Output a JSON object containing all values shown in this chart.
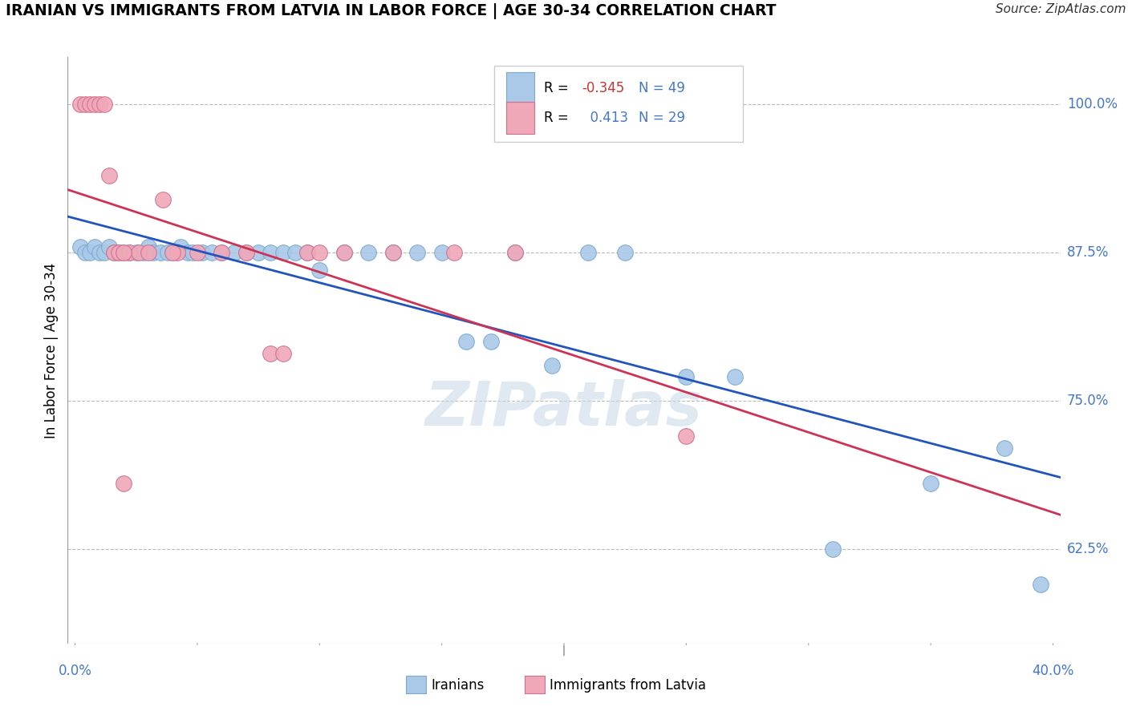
{
  "title": "IRANIAN VS IMMIGRANTS FROM LATVIA IN LABOR FORCE | AGE 30-34 CORRELATION CHART",
  "source": "Source: ZipAtlas.com",
  "ylabel": "In Labor Force | Age 30-34",
  "ytick_labels": [
    "100.0%",
    "87.5%",
    "75.0%",
    "62.5%"
  ],
  "ytick_vals": [
    1.0,
    0.875,
    0.75,
    0.625
  ],
  "xlim": [
    -0.003,
    0.403
  ],
  "ylim": [
    0.545,
    1.04
  ],
  "legend_blue_R": "-0.345",
  "legend_blue_N": "49",
  "legend_pink_R": "0.413",
  "legend_pink_N": "29",
  "blue_color": "#aac8e8",
  "blue_edge": "#7aaad0",
  "pink_color": "#f0a8b8",
  "pink_edge": "#d07090",
  "trend_blue_color": "#2255bb",
  "trend_pink_color": "#cc3355",
  "watermark": "ZIPatlas",
  "blue_x": [
    0.002,
    0.004,
    0.006,
    0.008,
    0.01,
    0.012,
    0.014,
    0.016,
    0.018,
    0.02,
    0.022,
    0.025,
    0.028,
    0.03,
    0.032,
    0.035,
    0.038,
    0.04,
    0.043,
    0.046,
    0.048,
    0.052,
    0.056,
    0.06,
    0.065,
    0.07,
    0.075,
    0.08,
    0.085,
    0.09,
    0.095,
    0.1,
    0.11,
    0.12,
    0.13,
    0.14,
    0.15,
    0.17,
    0.195,
    0.21,
    0.225,
    0.25,
    0.27,
    0.31,
    0.35,
    0.38,
    0.395,
    0.16,
    0.18
  ],
  "blue_y": [
    0.88,
    0.875,
    0.875,
    0.88,
    0.875,
    0.875,
    0.88,
    0.875,
    0.875,
    0.875,
    0.875,
    0.875,
    0.875,
    0.88,
    0.875,
    0.875,
    0.875,
    0.875,
    0.88,
    0.875,
    0.875,
    0.875,
    0.875,
    0.875,
    0.875,
    0.875,
    0.875,
    0.875,
    0.875,
    0.875,
    0.875,
    0.86,
    0.875,
    0.875,
    0.875,
    0.875,
    0.875,
    0.8,
    0.78,
    0.875,
    0.875,
    0.77,
    0.77,
    0.625,
    0.68,
    0.71,
    0.595,
    0.8,
    0.875
  ],
  "pink_x": [
    0.002,
    0.004,
    0.006,
    0.008,
    0.01,
    0.012,
    0.014,
    0.016,
    0.018,
    0.022,
    0.026,
    0.03,
    0.036,
    0.042,
    0.05,
    0.06,
    0.07,
    0.08,
    0.095,
    0.11,
    0.13,
    0.155,
    0.18,
    0.02,
    0.04,
    0.085,
    0.1,
    0.25,
    0.02
  ],
  "pink_y": [
    1.0,
    1.0,
    1.0,
    1.0,
    1.0,
    1.0,
    0.94,
    0.875,
    0.875,
    0.875,
    0.875,
    0.875,
    0.92,
    0.875,
    0.875,
    0.875,
    0.875,
    0.79,
    0.875,
    0.875,
    0.875,
    0.875,
    0.875,
    0.875,
    0.875,
    0.79,
    0.875,
    0.72,
    0.68
  ]
}
